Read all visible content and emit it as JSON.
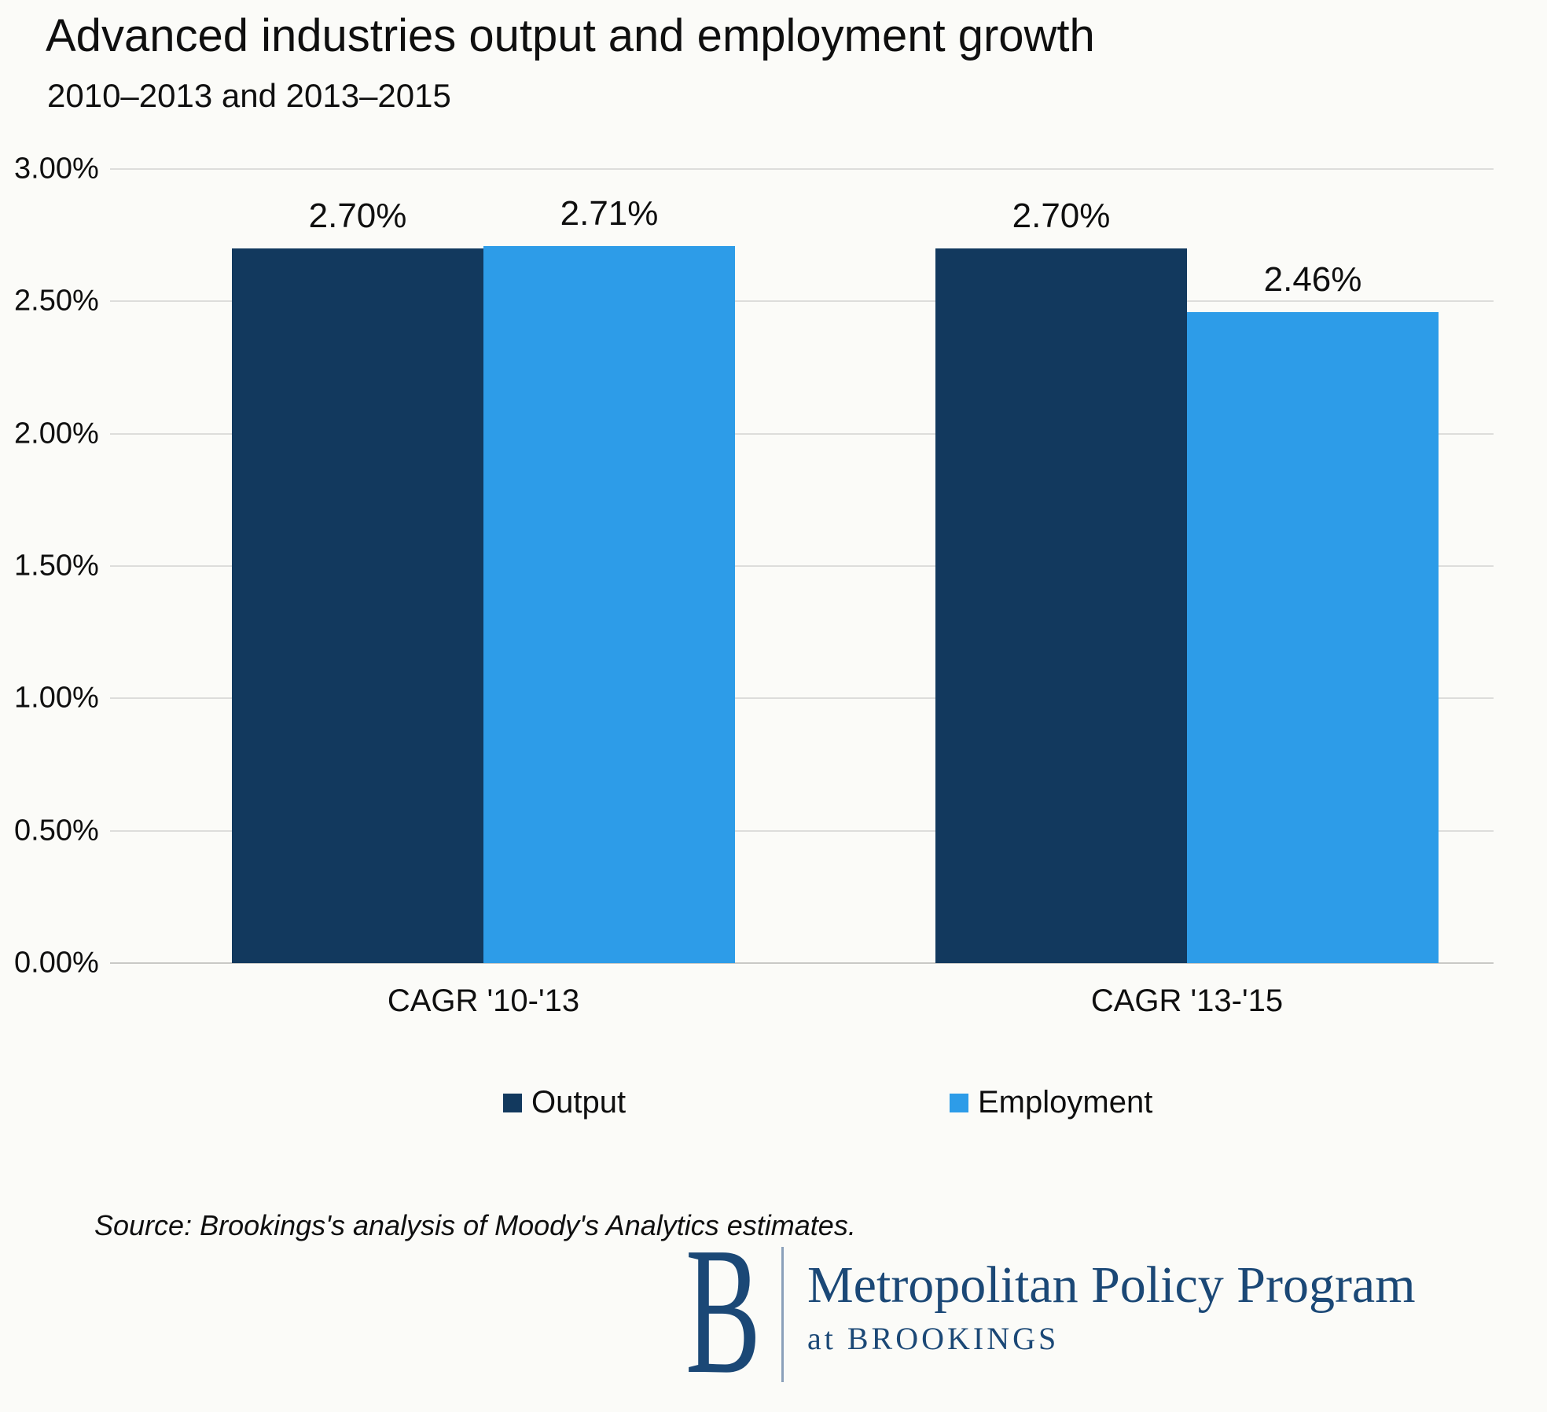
{
  "title": "Advanced industries output and employment growth",
  "subtitle": "2010–2013  and 2013–2015",
  "source": "Source: Brookings's analysis of Moody's Analytics estimates.",
  "footer": {
    "logo_letter": "B",
    "program": "Metropolitan Policy Program",
    "sub": "at BROOKINGS"
  },
  "chart_data": {
    "type": "bar",
    "title": "Advanced industries output and employment growth",
    "subtitle": "2010–2013 and 2013–2015",
    "categories": [
      "CAGR '10-'13",
      "CAGR '13-'15"
    ],
    "series": [
      {
        "name": "Output",
        "color": "#12395e",
        "values": [
          2.7,
          2.7
        ],
        "labels": [
          "2.70%",
          "2.70%"
        ]
      },
      {
        "name": "Employment",
        "color": "#2d9ce8",
        "values": [
          2.71,
          2.46
        ],
        "labels": [
          "2.71%",
          "2.46%"
        ]
      }
    ],
    "ylim": [
      0,
      3
    ],
    "yticks": [
      "3.00%",
      "2.50%",
      "2.00%",
      "1.50%",
      "1.00%",
      "0.50%",
      "0.00%"
    ],
    "ylabel": "",
    "xlabel": "",
    "grid": true,
    "legend_position": "bottom"
  }
}
